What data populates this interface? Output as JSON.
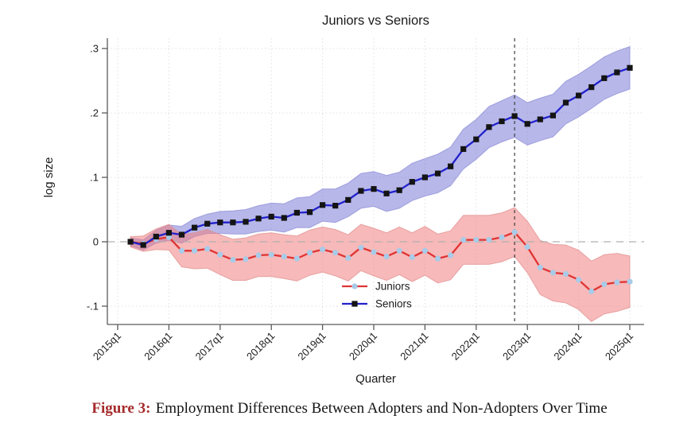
{
  "caption": {
    "label": "Figure 3:",
    "text": "Employment Differences Between Adopters and Non-Adopters Over Time"
  },
  "chart_data": {
    "type": "line",
    "title": "Juniors vs Seniors",
    "xlabel": "Quarter",
    "ylabel": "log size",
    "ylim": [
      -0.1,
      0.3
    ],
    "grid": "dotted",
    "y_ticks": [
      {
        "label": ".3",
        "value": 0.3
      },
      {
        "label": ".2",
        "value": 0.2
      },
      {
        "label": ".1",
        "value": 0.1
      },
      {
        "label": "0",
        "value": 0.0
      },
      {
        "label": "-.1",
        "value": -0.1
      }
    ],
    "x_ticks": [
      {
        "label": "2015q1",
        "q": 0
      },
      {
        "label": "2016q1",
        "q": 4
      },
      {
        "label": "2017q1",
        "q": 8
      },
      {
        "label": "2018q1",
        "q": 12
      },
      {
        "label": "2019q1",
        "q": 16
      },
      {
        "label": "2020q1",
        "q": 20
      },
      {
        "label": "2021q1",
        "q": 24
      },
      {
        "label": "2022q1",
        "q": 28
      },
      {
        "label": "2023q1",
        "q": 32
      },
      {
        "label": "2024q1",
        "q": 36
      },
      {
        "label": "2025q1",
        "q": 40
      }
    ],
    "baseline_quarter": "2015q1",
    "quarters": [
      "2015q2",
      "2015q3",
      "2015q4",
      "2016q1",
      "2016q2",
      "2016q3",
      "2016q4",
      "2017q1",
      "2017q2",
      "2017q3",
      "2017q4",
      "2018q1",
      "2018q2",
      "2018q3",
      "2018q4",
      "2019q1",
      "2019q2",
      "2019q3",
      "2019q4",
      "2020q1",
      "2020q2",
      "2020q3",
      "2020q4",
      "2021q1",
      "2021q2",
      "2021q3",
      "2021q4",
      "2022q1",
      "2022q2",
      "2022q3",
      "2022q4",
      "2023q1",
      "2023q2",
      "2023q3",
      "2023q4",
      "2024q1",
      "2024q2",
      "2024q3",
      "2024q4",
      "2025q1"
    ],
    "reference_lines": {
      "horizontal_y": 0,
      "vertical_quarter": "2022q4",
      "vertical_q_index": 31
    },
    "legend": {
      "position": "inside-bottom-center",
      "entries": [
        "Juniors",
        "Seniors"
      ]
    },
    "series": [
      {
        "name": "Juniors",
        "color": "#e03434",
        "marker": "circle",
        "marker_color": "#a8cbe8",
        "band_color": "#f08080",
        "band_edge": "#e09090",
        "band_opacity": 0.55,
        "values": [
          0.0,
          -0.003,
          0.004,
          0.007,
          -0.014,
          -0.014,
          -0.011,
          -0.02,
          -0.028,
          -0.027,
          -0.021,
          -0.02,
          -0.023,
          -0.026,
          -0.017,
          -0.012,
          -0.017,
          -0.025,
          -0.009,
          -0.016,
          -0.023,
          -0.014,
          -0.024,
          -0.014,
          -0.026,
          -0.021,
          0.003,
          0.003,
          0.003,
          0.007,
          0.015,
          -0.008,
          -0.04,
          -0.048,
          -0.05,
          -0.059,
          -0.077,
          -0.066,
          -0.063,
          -0.062
        ],
        "ci_halfwidth": [
          0.008,
          0.012,
          0.016,
          0.02,
          0.025,
          0.028,
          0.03,
          0.031,
          0.032,
          0.033,
          0.033,
          0.034,
          0.034,
          0.035,
          0.035,
          0.035,
          0.036,
          0.036,
          0.036,
          0.037,
          0.037,
          0.037,
          0.038,
          0.038,
          0.038,
          0.038,
          0.038,
          0.038,
          0.038,
          0.038,
          0.038,
          0.04,
          0.042,
          0.044,
          0.045,
          0.046,
          0.047,
          0.046,
          0.045,
          0.04
        ]
      },
      {
        "name": "Seniors",
        "color": "#2121cc",
        "marker": "square",
        "marker_color": "#141414",
        "band_color": "#7070d4",
        "band_edge": "#8c8cd8",
        "band_opacity": 0.5,
        "values": [
          0.0,
          -0.005,
          0.008,
          0.014,
          0.011,
          0.022,
          0.028,
          0.03,
          0.03,
          0.031,
          0.036,
          0.039,
          0.037,
          0.045,
          0.046,
          0.057,
          0.056,
          0.065,
          0.079,
          0.082,
          0.075,
          0.08,
          0.093,
          0.1,
          0.106,
          0.117,
          0.144,
          0.159,
          0.178,
          0.187,
          0.195,
          0.183,
          0.19,
          0.196,
          0.216,
          0.227,
          0.24,
          0.254,
          0.263,
          0.27
        ],
        "ci_halfwidth": [
          0.006,
          0.008,
          0.01,
          0.012,
          0.013,
          0.014,
          0.015,
          0.017,
          0.018,
          0.019,
          0.02,
          0.021,
          0.022,
          0.023,
          0.024,
          0.025,
          0.026,
          0.026,
          0.027,
          0.027,
          0.028,
          0.028,
          0.029,
          0.029,
          0.03,
          0.03,
          0.031,
          0.031,
          0.032,
          0.032,
          0.033,
          0.033,
          0.033,
          0.033,
          0.033,
          0.033,
          0.033,
          0.033,
          0.033,
          0.033
        ]
      }
    ]
  }
}
